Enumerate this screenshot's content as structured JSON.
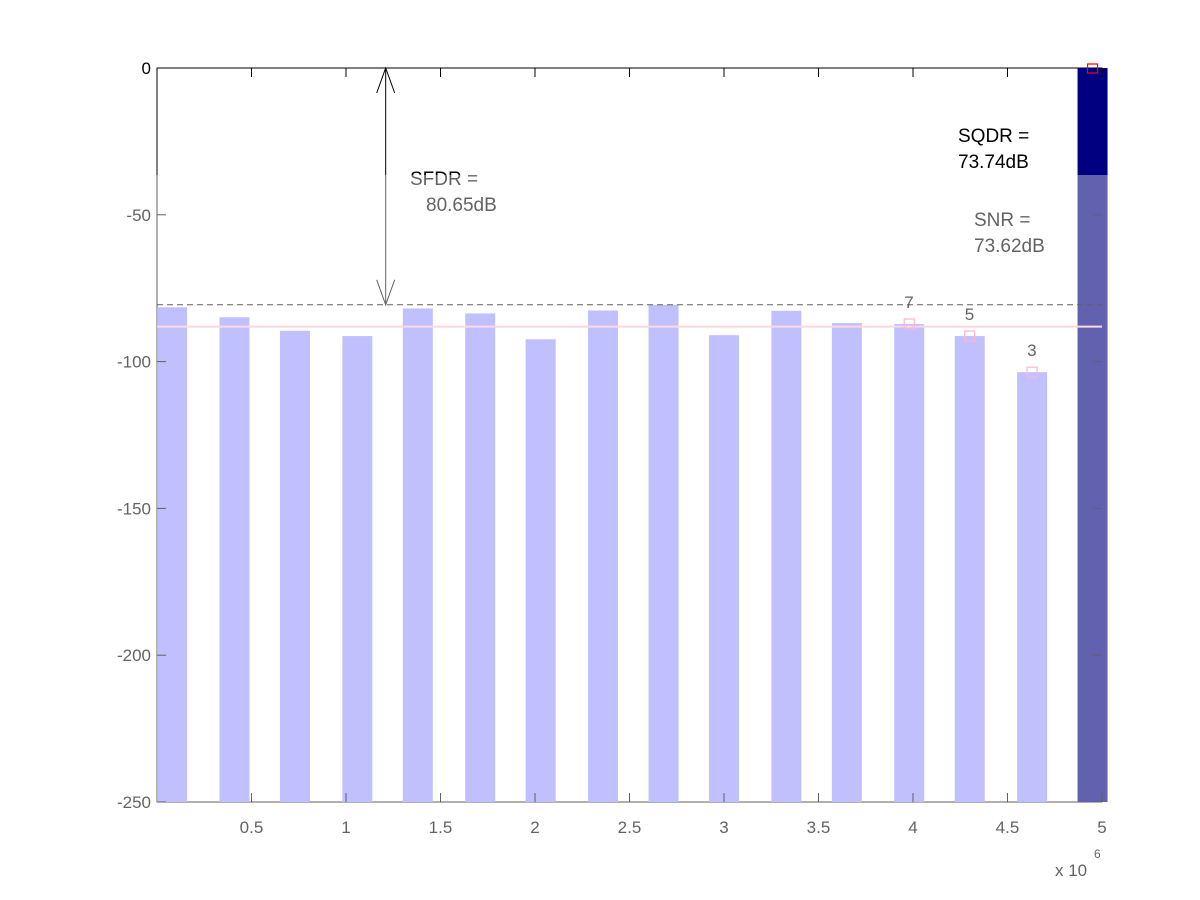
{
  "chart_data": {
    "type": "bar",
    "title": "",
    "xlabel": "",
    "ylabel": "",
    "x_exponent_label": "x 10",
    "x_exponent_power": "6",
    "xlim": [
      0,
      5
    ],
    "ylim": [
      -250,
      0
    ],
    "grid": false,
    "x_ticks": [
      {
        "value": 0.5,
        "label": "0.5"
      },
      {
        "value": 1,
        "label": "1"
      },
      {
        "value": 1.5,
        "label": "1.5"
      },
      {
        "value": 2,
        "label": "2"
      },
      {
        "value": 2.5,
        "label": "2.5"
      },
      {
        "value": 3,
        "label": "3"
      },
      {
        "value": 3.5,
        "label": "3.5"
      },
      {
        "value": 4,
        "label": "4"
      },
      {
        "value": 4.5,
        "label": "4.5"
      },
      {
        "value": 5,
        "label": "5"
      }
    ],
    "y_ticks": [
      {
        "value": 0,
        "label": "0"
      },
      {
        "value": -50,
        "label": "-50"
      },
      {
        "value": -100,
        "label": "-100"
      },
      {
        "value": -150,
        "label": "-150"
      },
      {
        "value": -200,
        "label": "-200"
      },
      {
        "value": -250,
        "label": "-250"
      }
    ],
    "bars": [
      {
        "x": 0.08,
        "value": -81.5
      },
      {
        "x": 0.41,
        "value": -84.9
      },
      {
        "x": 0.73,
        "value": -89.5
      },
      {
        "x": 1.06,
        "value": -91.3
      },
      {
        "x": 1.38,
        "value": -81.9
      },
      {
        "x": 1.71,
        "value": -83.6
      },
      {
        "x": 2.03,
        "value": -92.4
      },
      {
        "x": 2.36,
        "value": -82.6
      },
      {
        "x": 2.68,
        "value": -80.7
      },
      {
        "x": 3.0,
        "value": -91.0
      },
      {
        "x": 3.33,
        "value": -82.7
      },
      {
        "x": 3.65,
        "value": -86.9
      },
      {
        "x": 3.98,
        "value": -87.2
      },
      {
        "x": 4.3,
        "value": -91.3
      },
      {
        "x": 4.63,
        "value": -103.6
      },
      {
        "x": 4.95,
        "value": 0,
        "fundamental": true
      }
    ],
    "spur_line": -80.65,
    "noise_line": -88.1,
    "harmonics": [
      {
        "x": 3.98,
        "value": -87.2,
        "label": "7"
      },
      {
        "x": 4.3,
        "value": -91.3,
        "label": "5"
      },
      {
        "x": 4.63,
        "value": -103.6,
        "label": "3"
      }
    ],
    "fundamental_marker": {
      "x": 4.95,
      "value": 0
    },
    "sfdr_arrow_x": 1.21,
    "annotations": {
      "sfdr_label": "SFDR =",
      "sfdr_value": "80.65dB",
      "sqdr_label": "SQDR =",
      "sqdr_value": "73.74dB",
      "snr_label": "SNR =",
      "snr_value": "73.62dB"
    },
    "colors": {
      "bar": "#9999ff",
      "fundamental_bar": "#000080",
      "noise_line": "#ffc0cb",
      "marker": "#ff0000",
      "harmonic_marker": "#ff88aa",
      "axis": "#000000"
    }
  }
}
